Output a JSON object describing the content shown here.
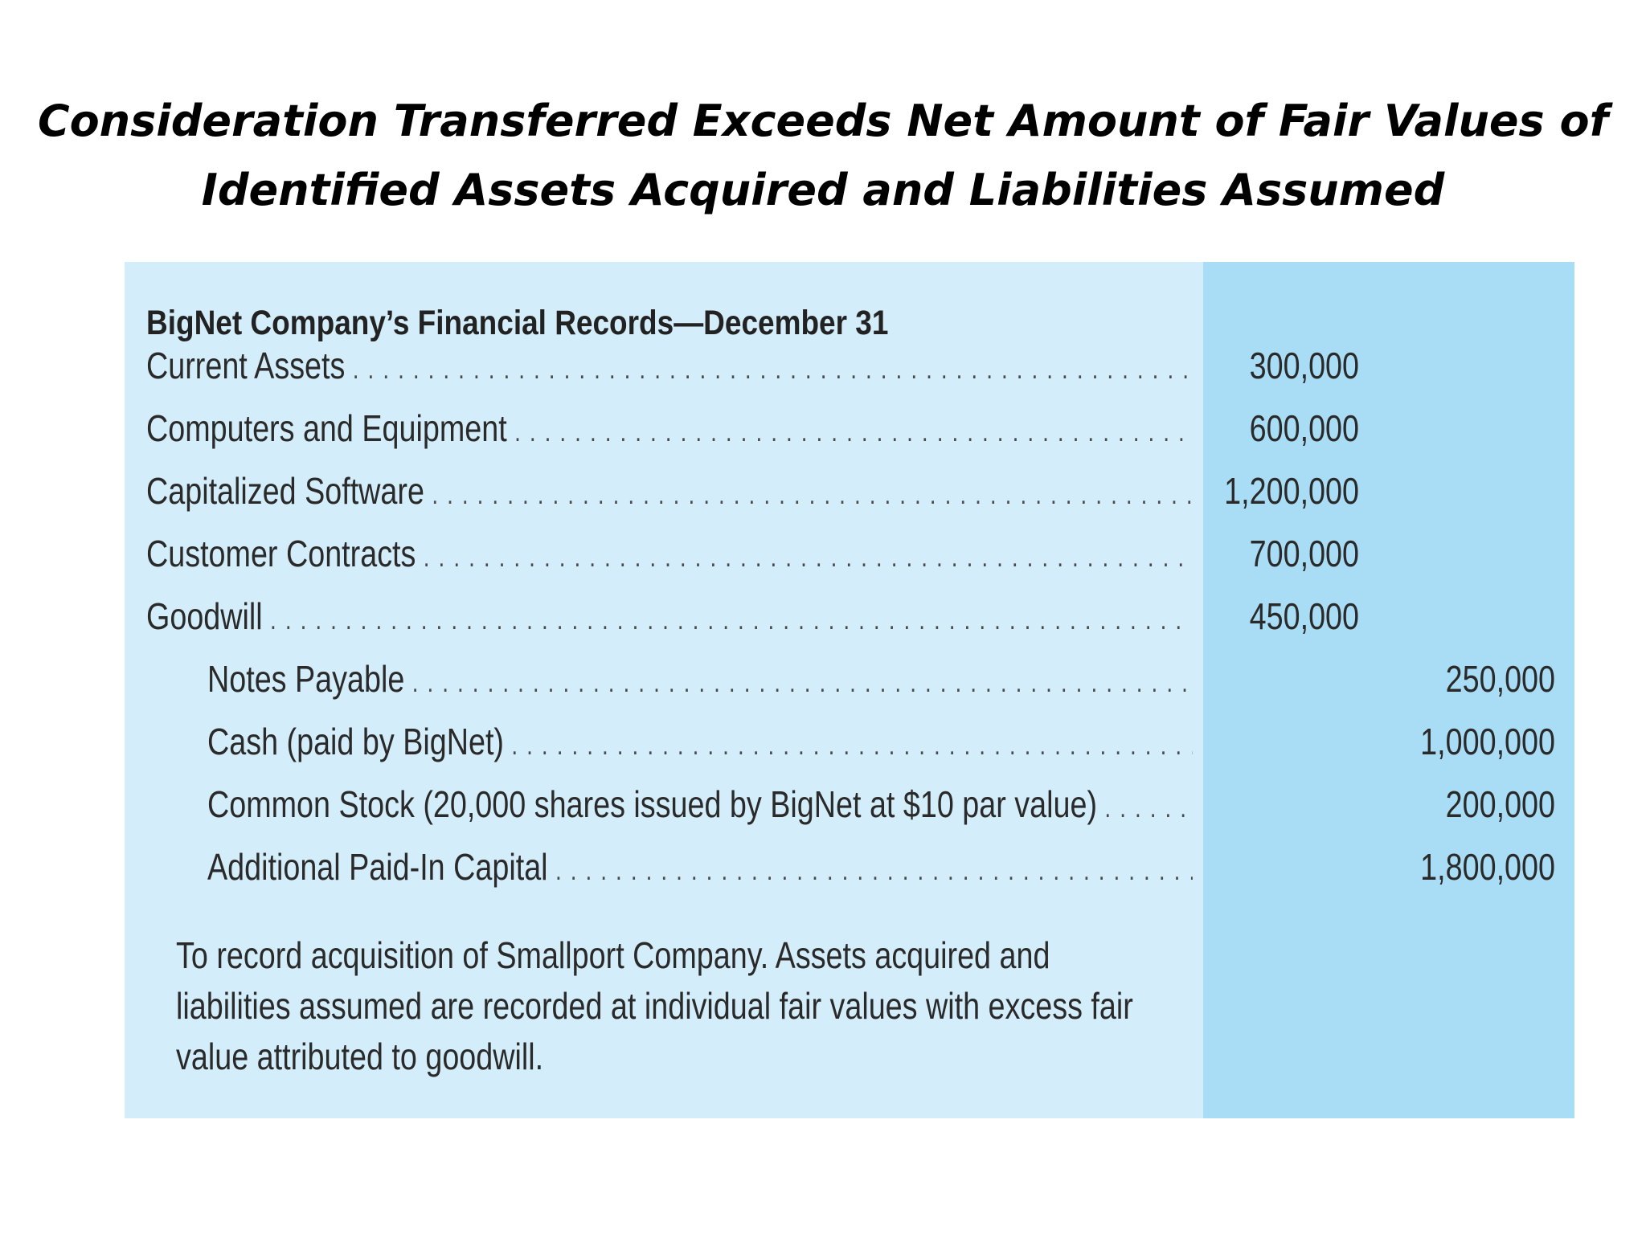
{
  "slide": {
    "title_line1": "Consideration Transferred Exceeds Net Amount of Fair Values of",
    "title_line2": "Identified Assets Acquired and Liabilities Assumed"
  },
  "journal": {
    "heading": "BigNet Company’s Financial Records—December 31",
    "entries": [
      {
        "account": "Current Assets",
        "debit": "300,000",
        "credit": ""
      },
      {
        "account": "Computers and Equipment",
        "debit": "600,000",
        "credit": ""
      },
      {
        "account": "Capitalized Software",
        "debit": "1,200,000",
        "credit": ""
      },
      {
        "account": "Customer Contracts",
        "debit": "700,000",
        "credit": ""
      },
      {
        "account": "Goodwill",
        "debit": "450,000",
        "credit": ""
      },
      {
        "account": "Notes Payable",
        "debit": "",
        "credit": "250,000"
      },
      {
        "account": "Cash (paid by BigNet)",
        "debit": "",
        "credit": "1,000,000"
      },
      {
        "account": "Common Stock (20,000 shares issued by BigNet at $10 par value)",
        "debit": "",
        "credit": "200,000"
      },
      {
        "account": "Additional Paid-In Capital",
        "debit": "",
        "credit": "1,800,000"
      }
    ],
    "explanation": "To record acquisition of Smallport Company. Assets acquired and liabilities assumed are recorded at individual fair values with excess fair value attributed to goodwill.",
    "colors": {
      "panel_background": "#d3eefa",
      "amount_column_background": "#a9ddf6"
    }
  }
}
